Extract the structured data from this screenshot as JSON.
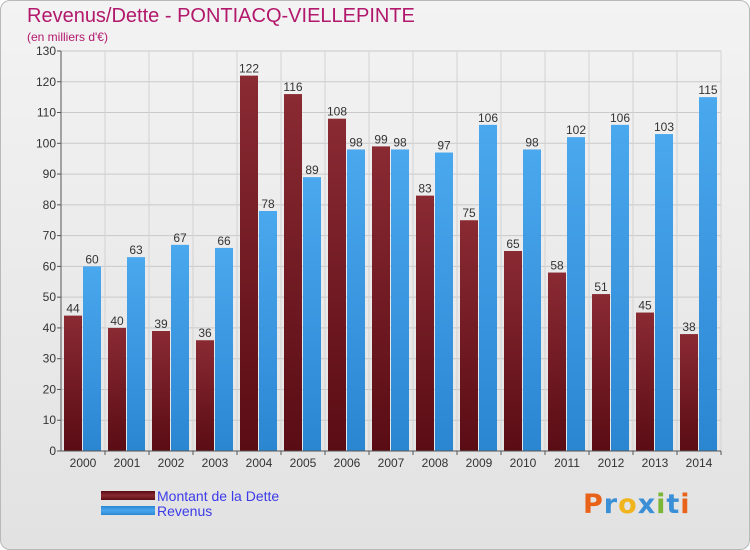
{
  "header": {
    "title": "Revenus/Dette - PONTIACQ-VIELLEPINTE",
    "subtitle": "(en milliers d'€)"
  },
  "chart_data": {
    "type": "bar",
    "title": "Revenus/Dette - PONTIACQ-VIELLEPINTE",
    "subtitle": "(en milliers d'€)",
    "categories": [
      "2000",
      "2001",
      "2002",
      "2003",
      "2004",
      "2005",
      "2006",
      "2007",
      "2008",
      "2009",
      "2010",
      "2011",
      "2012",
      "2013",
      "2014"
    ],
    "series": [
      {
        "name": "Montant de la Dette",
        "color": "#7e1f2a",
        "values": [
          44,
          40,
          39,
          36,
          122,
          116,
          108,
          99,
          83,
          75,
          65,
          58,
          51,
          45,
          38
        ]
      },
      {
        "name": "Revenus",
        "color": "#3d9be6",
        "values": [
          60,
          63,
          67,
          66,
          78,
          89,
          98,
          98,
          97,
          106,
          98,
          102,
          106,
          103,
          115
        ]
      }
    ],
    "ylim": [
      0,
      130
    ],
    "yticks": [
      0,
      10,
      20,
      30,
      40,
      50,
      60,
      70,
      80,
      90,
      100,
      110,
      120,
      130
    ],
    "grid": true,
    "legend": "bottom-left"
  },
  "legend": {
    "items": [
      {
        "label": "Montant de la Dette",
        "color": "#7e1f2a"
      },
      {
        "label": "Revenus",
        "color": "#3d9be6"
      }
    ]
  },
  "logo": {
    "text": "Proxiti",
    "colors": [
      "#e8621a",
      "#3a8fd6",
      "#f0b41c",
      "#3a8fd6",
      "#7cb637",
      "#3a8fd6",
      "#e8621a"
    ]
  }
}
